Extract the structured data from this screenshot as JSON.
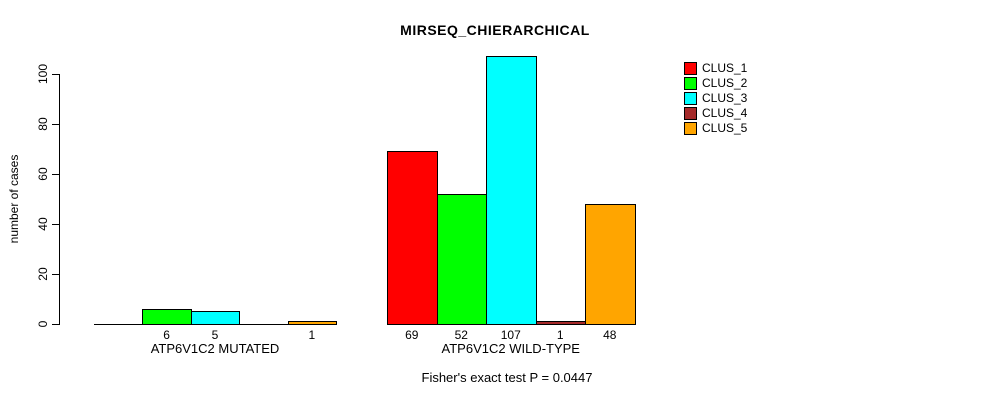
{
  "title": "MIRSEQ_CHIERARCHICAL",
  "ylabel": "number of cases",
  "footer": "Fisher's exact test P = 0.0447",
  "chart_data": {
    "type": "bar",
    "title": "MIRSEQ_CHIERARCHICAL",
    "ylabel": "number of cases",
    "xlabel": "",
    "ylim": [
      0,
      107
    ],
    "yticks": [
      0,
      20,
      40,
      60,
      80,
      100
    ],
    "grid": false,
    "legend_position": "top-right",
    "series_names": [
      "CLUS_1",
      "CLUS_2",
      "CLUS_3",
      "CLUS_4",
      "CLUS_5"
    ],
    "series_colors": [
      "#FF0000",
      "#00FF00",
      "#00FFFF",
      "#A52A2A",
      "#FFA500"
    ],
    "groups": [
      {
        "label": "ATP6V1C2 MUTATED",
        "values": [
          0,
          6,
          5,
          0,
          1
        ]
      },
      {
        "label": "ATP6V1C2 WILD-TYPE",
        "values": [
          69,
          52,
          107,
          1,
          48
        ]
      }
    ],
    "bar_value_labels": [
      [
        "",
        "6",
        "5",
        "",
        "1"
      ],
      [
        "69",
        "52",
        "107",
        "1",
        "48"
      ]
    ],
    "annotation": "Fisher's exact test P = 0.0447"
  },
  "legend": {
    "entries": [
      {
        "label": "CLUS_1",
        "color": "#FF0000"
      },
      {
        "label": "CLUS_2",
        "color": "#00FF00"
      },
      {
        "label": "CLUS_3",
        "color": "#00FFFF"
      },
      {
        "label": "CLUS_4",
        "color": "#A52A2A"
      },
      {
        "label": "CLUS_5",
        "color": "#FFA500"
      }
    ]
  }
}
